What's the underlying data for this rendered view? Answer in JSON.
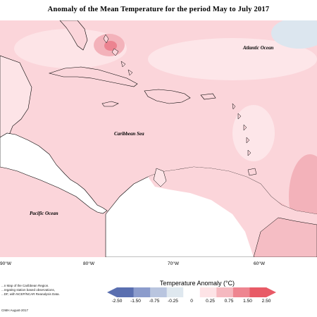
{
  "title": "Anomaly of the Mean Temperature for the period May to July 2017",
  "map": {
    "labels": {
      "atlantic": "Atlantic Ocean",
      "caribbean": "Caribbean Sea",
      "pacific": "Pacific Ocean"
    },
    "longitude_ticks": [
      "90°W",
      "80°W",
      "70°W",
      "60°W"
    ]
  },
  "notes": {
    "line1": "...n Map of the Caribbean Region.",
    "line2": "...regating station based observations,",
    "line3": "...DF, with NCEP/NCAR Reanalysis Data.",
    "credit": "CIMH August-2017"
  },
  "legend": {
    "title": "Temperature Anomaly (°C)",
    "labels": [
      "-2.50",
      "-1.50",
      "-0.75",
      "-0.25",
      "0",
      "0.25",
      "0.75",
      "1.50",
      "2.50"
    ],
    "colors": [
      "#5a6fb0",
      "#8c9ccc",
      "#b9c5df",
      "#dfe8ef",
      "#ffffff",
      "#fde3e6",
      "#f5b9c0",
      "#ee8590",
      "#e85a66"
    ]
  },
  "colors": {
    "anomaly_base": "#fbd5da",
    "land": "#ffffff",
    "coast": "#000000"
  }
}
